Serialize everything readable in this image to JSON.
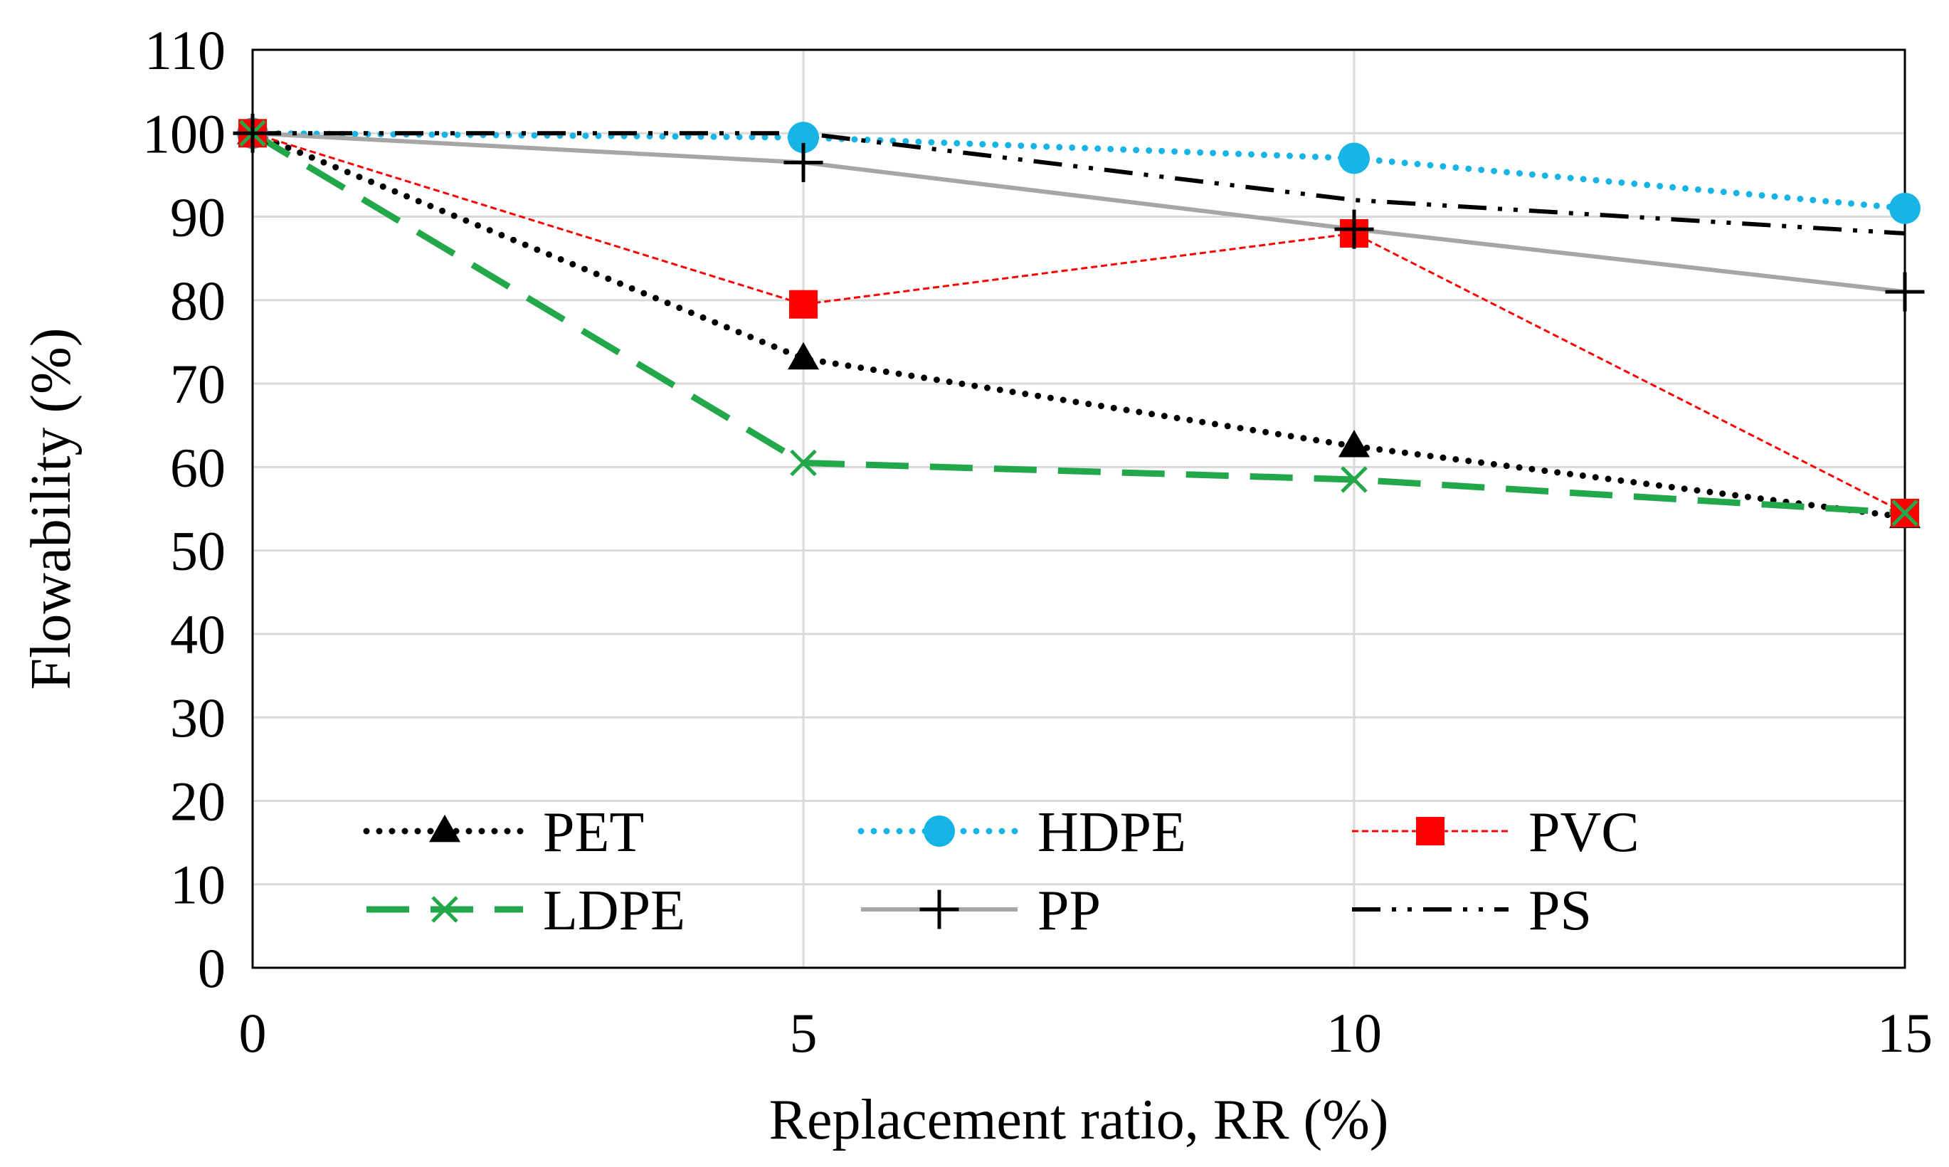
{
  "chart_data": {
    "type": "line",
    "title": "",
    "xlabel": "Replacement ratio, RR (%)",
    "ylabel": "Flowability (%)",
    "xlim": [
      0,
      15
    ],
    "ylim": [
      0,
      110
    ],
    "x": [
      0,
      5,
      10,
      15
    ],
    "x_ticks": [
      0,
      5,
      10,
      15
    ],
    "y_ticks": [
      0,
      10,
      20,
      30,
      40,
      50,
      60,
      70,
      80,
      90,
      100,
      110
    ],
    "grid": true,
    "legend_position": "bottom-inside",
    "series": [
      {
        "name": "PET",
        "values": [
          100,
          73,
          62.5,
          54
        ],
        "color": "#000000",
        "line": "dotted",
        "marker": "triangle"
      },
      {
        "name": "HDPE",
        "values": [
          100,
          99.5,
          97,
          91
        ],
        "color": "#19b4e6",
        "line": "dotted",
        "marker": "circle"
      },
      {
        "name": "PVC",
        "values": [
          100,
          79.5,
          88,
          54.5
        ],
        "color": "#ff0000",
        "line": "thin-dashed",
        "marker": "square"
      },
      {
        "name": "LDPE",
        "values": [
          100,
          60.5,
          58.5,
          54.5
        ],
        "color": "#22a84a",
        "line": "long-dash",
        "marker": "x"
      },
      {
        "name": "PP",
        "values": [
          100,
          96.5,
          88.5,
          81
        ],
        "color": "#a6a6a6",
        "line": "solid",
        "marker": "plus"
      },
      {
        "name": "PS",
        "values": [
          100,
          100,
          92,
          88
        ],
        "color": "#000000",
        "line": "dash-dot-dot",
        "marker": "none"
      }
    ]
  }
}
